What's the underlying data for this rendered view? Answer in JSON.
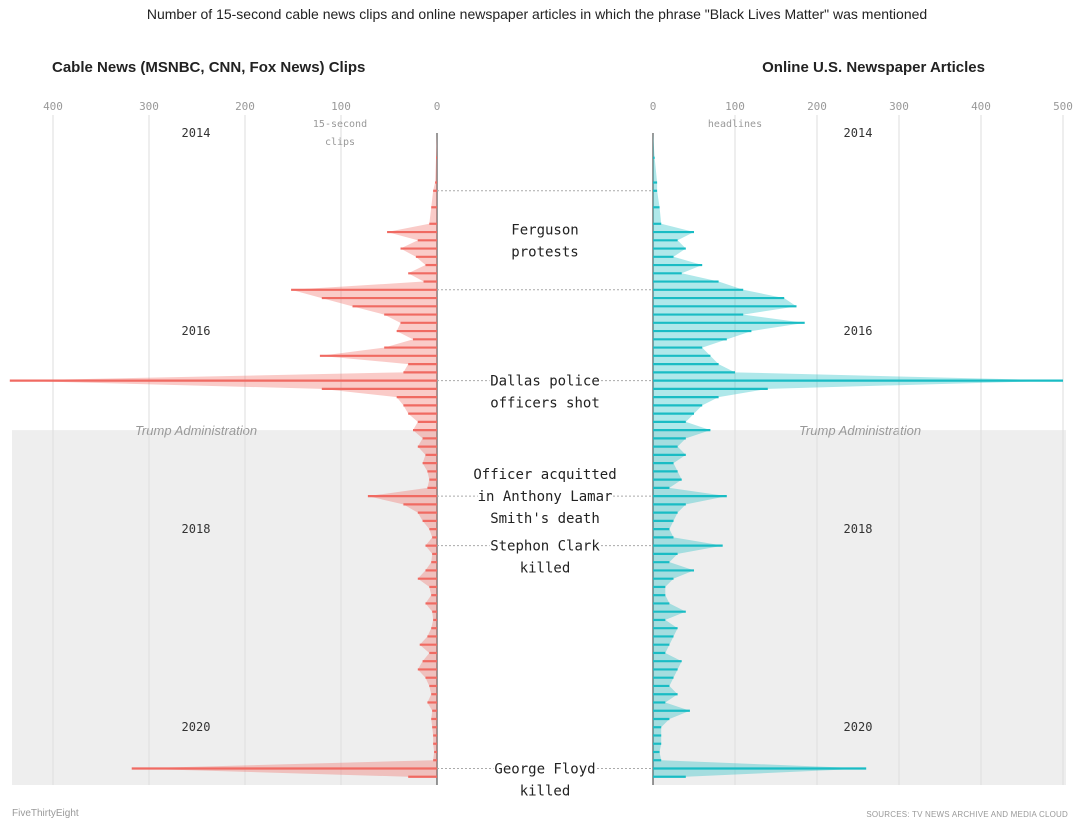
{
  "subtitle": "Number of 15-second cable news clips and online newspaper articles in which the phrase \"Black Lives Matter\" was mentioned",
  "footer": {
    "left": "FiveThirtyEight",
    "right": "SOURCES: TV NEWS ARCHIVE AND MEDIA CLOUD"
  },
  "colors": {
    "cable": "#f06a62",
    "newspaper": "#19bcc4",
    "shade": "#eeeeee",
    "grid": "#dddddd"
  },
  "shaded_region_label": "Trump Administration",
  "chart_data": [
    {
      "type": "bar",
      "orientation": "horizontal",
      "title": "Cable News (MSNBC, CNN, Fox News) Clips",
      "axis_unit_label": "15-second clips",
      "xlim": [
        400,
        0
      ],
      "x_ticks": [
        400,
        300,
        200,
        100,
        0
      ],
      "y_tick_labels": [
        "2014",
        "2016",
        "2018",
        "2020"
      ],
      "ylim": [
        "2014-01",
        "2020-08"
      ],
      "grid": true,
      "series": [
        {
          "name": "Cable News (MSNBC, CNN, Fox News) Clips",
          "color": "#f06a62",
          "points": [
            [
              "2014-01",
              0
            ],
            [
              "2014-04",
              1
            ],
            [
              "2014-07",
              2
            ],
            [
              "2014-08",
              4
            ],
            [
              "2014-10",
              6
            ],
            [
              "2014-12",
              8
            ],
            [
              "2015-01",
              52
            ],
            [
              "2015-02",
              20
            ],
            [
              "2015-03",
              38
            ],
            [
              "2015-04",
              22
            ],
            [
              "2015-05",
              12
            ],
            [
              "2015-06",
              30
            ],
            [
              "2015-07",
              14
            ],
            [
              "2015-08",
              152
            ],
            [
              "2015-09",
              120
            ],
            [
              "2015-10",
              88
            ],
            [
              "2015-11",
              55
            ],
            [
              "2015-12",
              38
            ],
            [
              "2016-01",
              42
            ],
            [
              "2016-02",
              25
            ],
            [
              "2016-03",
              55
            ],
            [
              "2016-04",
              122
            ],
            [
              "2016-05",
              30
            ],
            [
              "2016-06",
              35
            ],
            [
              "2016-07",
              445
            ],
            [
              "2016-08",
              120
            ],
            [
              "2016-09",
              42
            ],
            [
              "2016-10",
              35
            ],
            [
              "2016-11",
              30
            ],
            [
              "2016-12",
              20
            ],
            [
              "2017-01",
              25
            ],
            [
              "2017-02",
              15
            ],
            [
              "2017-03",
              20
            ],
            [
              "2017-04",
              12
            ],
            [
              "2017-05",
              15
            ],
            [
              "2017-06",
              10
            ],
            [
              "2017-07",
              8
            ],
            [
              "2017-08",
              10
            ],
            [
              "2017-09",
              72
            ],
            [
              "2017-10",
              35
            ],
            [
              "2017-11",
              20
            ],
            [
              "2017-12",
              15
            ],
            [
              "2018-01",
              8
            ],
            [
              "2018-02",
              5
            ],
            [
              "2018-03",
              12
            ],
            [
              "2018-04",
              5
            ],
            [
              "2018-05",
              6
            ],
            [
              "2018-06",
              12
            ],
            [
              "2018-07",
              20
            ],
            [
              "2018-08",
              8
            ],
            [
              "2018-09",
              6
            ],
            [
              "2018-10",
              12
            ],
            [
              "2018-11",
              5
            ],
            [
              "2018-12",
              4
            ],
            [
              "2019-01",
              6
            ],
            [
              "2019-02",
              10
            ],
            [
              "2019-03",
              18
            ],
            [
              "2019-04",
              8
            ],
            [
              "2019-05",
              15
            ],
            [
              "2019-06",
              20
            ],
            [
              "2019-07",
              12
            ],
            [
              "2019-08",
              8
            ],
            [
              "2019-09",
              6
            ],
            [
              "2019-10",
              10
            ],
            [
              "2019-11",
              5
            ],
            [
              "2019-12",
              6
            ],
            [
              "2020-01",
              5
            ],
            [
              "2020-02",
              4
            ],
            [
              "2020-03",
              4
            ],
            [
              "2020-04",
              3
            ],
            [
              "2020-05",
              4
            ],
            [
              "2020-06",
              318
            ],
            [
              "2020-07",
              30
            ]
          ]
        }
      ]
    },
    {
      "type": "bar",
      "orientation": "horizontal",
      "title": "Online U.S. Newspaper Articles",
      "axis_unit_label": "headlines",
      "xlim": [
        0,
        500
      ],
      "x_ticks": [
        0,
        100,
        200,
        300,
        400,
        500
      ],
      "y_tick_labels": [
        "2014",
        "2016",
        "2018",
        "2020"
      ],
      "ylim": [
        "2014-01",
        "2020-08"
      ],
      "grid": true,
      "series": [
        {
          "name": "Online U.S. Newspaper Articles",
          "color": "#19bcc4",
          "points": [
            [
              "2014-01",
              0
            ],
            [
              "2014-04",
              2
            ],
            [
              "2014-07",
              5
            ],
            [
              "2014-08",
              5
            ],
            [
              "2014-10",
              8
            ],
            [
              "2014-12",
              10
            ],
            [
              "2015-01",
              50
            ],
            [
              "2015-02",
              30
            ],
            [
              "2015-03",
              40
            ],
            [
              "2015-04",
              25
            ],
            [
              "2015-05",
              60
            ],
            [
              "2015-06",
              35
            ],
            [
              "2015-07",
              80
            ],
            [
              "2015-08",
              110
            ],
            [
              "2015-09",
              160
            ],
            [
              "2015-10",
              175
            ],
            [
              "2015-11",
              110
            ],
            [
              "2015-12",
              185
            ],
            [
              "2016-01",
              120
            ],
            [
              "2016-02",
              90
            ],
            [
              "2016-03",
              60
            ],
            [
              "2016-04",
              70
            ],
            [
              "2016-05",
              80
            ],
            [
              "2016-06",
              100
            ],
            [
              "2016-07",
              500
            ],
            [
              "2016-08",
              140
            ],
            [
              "2016-09",
              80
            ],
            [
              "2016-10",
              60
            ],
            [
              "2016-11",
              50
            ],
            [
              "2016-12",
              40
            ],
            [
              "2017-01",
              70
            ],
            [
              "2017-02",
              40
            ],
            [
              "2017-03",
              30
            ],
            [
              "2017-04",
              40
            ],
            [
              "2017-05",
              25
            ],
            [
              "2017-06",
              30
            ],
            [
              "2017-07",
              35
            ],
            [
              "2017-08",
              20
            ],
            [
              "2017-09",
              90
            ],
            [
              "2017-10",
              40
            ],
            [
              "2017-11",
              30
            ],
            [
              "2017-12",
              25
            ],
            [
              "2018-01",
              20
            ],
            [
              "2018-02",
              25
            ],
            [
              "2018-03",
              85
            ],
            [
              "2018-04",
              30
            ],
            [
              "2018-05",
              20
            ],
            [
              "2018-06",
              50
            ],
            [
              "2018-07",
              25
            ],
            [
              "2018-08",
              15
            ],
            [
              "2018-09",
              15
            ],
            [
              "2018-10",
              20
            ],
            [
              "2018-11",
              40
            ],
            [
              "2018-12",
              15
            ],
            [
              "2019-01",
              30
            ],
            [
              "2019-02",
              25
            ],
            [
              "2019-03",
              20
            ],
            [
              "2019-04",
              15
            ],
            [
              "2019-05",
              35
            ],
            [
              "2019-06",
              30
            ],
            [
              "2019-07",
              25
            ],
            [
              "2019-08",
              20
            ],
            [
              "2019-09",
              30
            ],
            [
              "2019-10",
              15
            ],
            [
              "2019-11",
              45
            ],
            [
              "2019-12",
              20
            ],
            [
              "2020-01",
              10
            ],
            [
              "2020-02",
              10
            ],
            [
              "2020-03",
              10
            ],
            [
              "2020-04",
              8
            ],
            [
              "2020-05",
              10
            ],
            [
              "2020-06",
              260
            ],
            [
              "2020-07",
              40
            ]
          ]
        }
      ]
    }
  ],
  "annotations": [
    {
      "text": [
        "Ferguson",
        "protests"
      ],
      "range": [
        "2014-08",
        "2015-08"
      ]
    },
    {
      "text": [
        "Dallas police",
        "officers shot"
      ],
      "date": "2016-07"
    },
    {
      "text": [
        "Officer acquitted",
        "in Anthony Lamar",
        "Smith's death"
      ],
      "date": "2017-09"
    },
    {
      "text": [
        "Stephon Clark",
        "killed"
      ],
      "date": "2018-03"
    },
    {
      "text": [
        "George Floyd",
        "killed"
      ],
      "date": "2020-06"
    }
  ],
  "shaded_region": {
    "start": "2017-01",
    "end": "2020-08",
    "label": "Trump Administration"
  }
}
